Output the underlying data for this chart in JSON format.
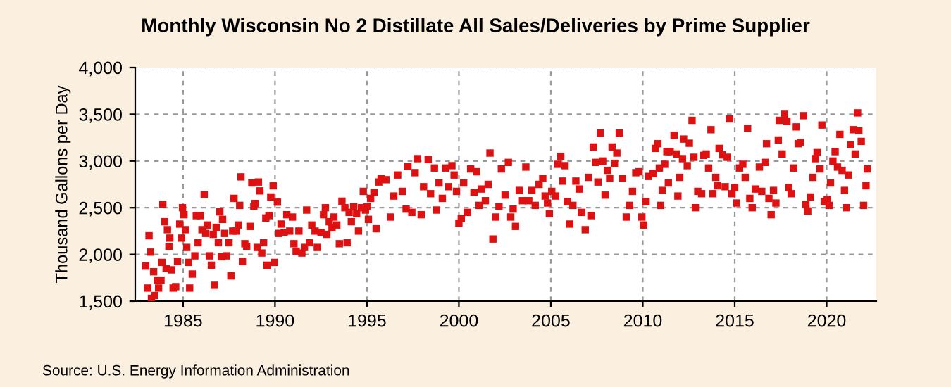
{
  "chart_data": {
    "type": "scatter",
    "title": "Monthly Wisconsin No 2 Distillate All Sales/Deliveries by Prime Supplier",
    "ylabel": "Thousand Gallons per Day",
    "annotations": [
      "Source: U.S. Energy Information Administration"
    ],
    "marker": "square",
    "grid": true,
    "xlim": [
      1982.4,
      2022.7
    ],
    "xticks": [
      1985,
      1990,
      1995,
      2000,
      2005,
      2010,
      2015,
      2020
    ],
    "ylim": [
      1500,
      4000
    ],
    "yticks": [
      {
        "value": 1500,
        "label": "1,500"
      },
      {
        "value": 2000,
        "label": "2,000"
      },
      {
        "value": 2500,
        "label": "2,500"
      },
      {
        "value": 3000,
        "label": "3,000"
      },
      {
        "value": 3500,
        "label": "3,500"
      },
      {
        "value": 4000,
        "label": "4,000"
      }
    ],
    "series": [
      {
        "color": "#dd1111",
        "x": [
          1982.97,
          1983.08,
          1983.15,
          1983.23,
          1983.28,
          1983.4,
          1983.46,
          1983.6,
          1983.67,
          1983.8,
          1983.85,
          1983.9,
          1984.0,
          1984.08,
          1984.15,
          1984.23,
          1984.28,
          1984.36,
          1984.46,
          1984.6,
          1984.7,
          1984.82,
          1984.92,
          1984.97,
          1985.05,
          1985.13,
          1985.2,
          1985.3,
          1985.36,
          1985.5,
          1985.64,
          1985.72,
          1985.82,
          1985.95,
          1986.03,
          1986.15,
          1986.23,
          1986.33,
          1986.44,
          1986.54,
          1986.64,
          1986.7,
          1986.8,
          1986.92,
          1987.0,
          1987.08,
          1987.15,
          1987.26,
          1987.36,
          1987.5,
          1987.6,
          1987.7,
          1987.77,
          1987.9,
          1988.0,
          1988.08,
          1988.15,
          1988.23,
          1988.36,
          1988.46,
          1988.64,
          1988.74,
          1988.85,
          1988.92,
          1989.03,
          1989.1,
          1989.18,
          1989.28,
          1989.38,
          1989.5,
          1989.56,
          1989.67,
          1989.77,
          1989.9,
          1989.97,
          1990.13,
          1990.2,
          1990.33,
          1990.5,
          1990.64,
          1990.8,
          1990.95,
          1991.03,
          1991.15,
          1991.3,
          1991.46,
          1991.6,
          1991.72,
          1991.87,
          1992.0,
          1992.18,
          1992.3,
          1992.5,
          1992.64,
          1992.74,
          1992.82,
          1992.95,
          1993.1,
          1993.2,
          1993.36,
          1993.5,
          1993.64,
          1993.8,
          1993.92,
          1994.03,
          1994.15,
          1994.28,
          1994.44,
          1994.54,
          1994.7,
          1994.8,
          1994.92,
          1995.0,
          1995.08,
          1995.2,
          1995.38,
          1995.5,
          1995.64,
          1995.77,
          1996.03,
          1996.28,
          1996.46,
          1996.67,
          1996.92,
          1997.13,
          1997.23,
          1997.44,
          1997.62,
          1997.74,
          1997.95,
          1998.08,
          1998.33,
          1998.46,
          1998.67,
          1998.77,
          1998.92,
          1999.1,
          1999.28,
          1999.44,
          1999.62,
          1999.74,
          1999.87,
          2000.0,
          2000.13,
          2000.26,
          2000.46,
          2000.64,
          2000.82,
          2000.97,
          2001.1,
          2001.23,
          2001.44,
          2001.59,
          2001.69,
          2001.85,
          2002.0,
          2002.18,
          2002.31,
          2002.51,
          2002.69,
          2002.82,
          2002.95,
          2003.08,
          2003.28,
          2003.46,
          2003.64,
          2003.8,
          2003.97,
          2004.15,
          2004.36,
          2004.56,
          2004.69,
          2004.82,
          2004.92,
          2005.05,
          2005.26,
          2005.38,
          2005.54,
          2005.64,
          2005.77,
          2005.9,
          2006.03,
          2006.2,
          2006.36,
          2006.54,
          2006.67,
          2006.87,
          2007.05,
          2007.18,
          2007.31,
          2007.44,
          2007.56,
          2007.69,
          2007.82,
          2007.95,
          2008.08,
          2008.2,
          2008.33,
          2008.46,
          2008.59,
          2008.72,
          2008.9,
          2009.1,
          2009.28,
          2009.44,
          2009.62,
          2009.8,
          2009.95,
          2010.05,
          2010.18,
          2010.31,
          2010.56,
          2010.69,
          2010.82,
          2010.9,
          2010.97,
          2011.06,
          2011.19,
          2011.31,
          2011.39,
          2011.49,
          2011.7,
          2011.83,
          2011.91,
          2012.01,
          2012.16,
          2012.22,
          2012.42,
          2012.53,
          2012.68,
          2012.78,
          2012.86,
          2012.99,
          2013.2,
          2013.3,
          2013.45,
          2013.58,
          2013.71,
          2013.81,
          2013.97,
          2014.07,
          2014.15,
          2014.33,
          2014.48,
          2014.59,
          2014.72,
          2014.85,
          2015.0,
          2015.1,
          2015.26,
          2015.44,
          2015.57,
          2015.7,
          2015.82,
          2015.95,
          2016.13,
          2016.34,
          2016.47,
          2016.65,
          2016.73,
          2016.86,
          2016.98,
          2017.11,
          2017.24,
          2017.37,
          2017.42,
          2017.58,
          2017.71,
          2017.84,
          2017.94,
          2018.07,
          2018.2,
          2018.35,
          2018.45,
          2018.58,
          2018.74,
          2018.87,
          2018.97,
          2019.12,
          2019.25,
          2019.38,
          2019.48,
          2019.64,
          2019.74,
          2019.87,
          2020.03,
          2020.13,
          2020.21,
          2020.34,
          2020.46,
          2020.59,
          2020.72,
          2020.84,
          2020.97,
          2021.06,
          2021.19,
          2021.29,
          2021.44,
          2021.55,
          2021.68,
          2021.75,
          2021.88,
          2022.01,
          2022.14,
          2022.21
        ],
        "values": [
          1875,
          1640,
          2200,
          2025,
          1530,
          1815,
          1560,
          1725,
          1640,
          1725,
          1915,
          2535,
          2350,
          1850,
          2265,
          2085,
          2175,
          1835,
          1640,
          1655,
          1925,
          2325,
          2175,
          2500,
          2425,
          2265,
          2075,
          1915,
          1640,
          1790,
          1985,
          2415,
          2125,
          2415,
          2265,
          2640,
          2225,
          2315,
          1985,
          1885,
          2215,
          1670,
          2290,
          2125,
          2455,
          1975,
          2375,
          2225,
          1985,
          2125,
          1770,
          2250,
          2600,
          2250,
          2315,
          2525,
          2830,
          1925,
          2115,
          2085,
          2300,
          2765,
          2515,
          2545,
          2075,
          2775,
          2680,
          2015,
          2125,
          2390,
          1885,
          2415,
          2615,
          2735,
          1915,
          2560,
          2225,
          2325,
          2235,
          2425,
          2250,
          2400,
          2115,
          2035,
          2250,
          2015,
          2075,
          2475,
          2125,
          2315,
          2250,
          2075,
          2235,
          2425,
          2500,
          2215,
          2350,
          2285,
          2400,
          2315,
          2115,
          2570,
          2500,
          2125,
          2450,
          2350,
          2515,
          2435,
          2250,
          2500,
          2675,
          2475,
          2515,
          2375,
          2600,
          2665,
          2275,
          2775,
          2815,
          2800,
          2400,
          2625,
          2850,
          2675,
          2485,
          2940,
          2450,
          2875,
          3025,
          2425,
          2725,
          3015,
          2650,
          2925,
          2475,
          2765,
          2600,
          2925,
          2725,
          2950,
          2850,
          2675,
          2335,
          2385,
          2765,
          2450,
          2915,
          2665,
          2885,
          2525,
          2700,
          2575,
          2750,
          3085,
          2165,
          2400,
          2515,
          2915,
          2635,
          2985,
          2400,
          2485,
          2300,
          2685,
          2575,
          2935,
          2575,
          2685,
          2525,
          2750,
          2815,
          2625,
          2550,
          2435,
          2675,
          2625,
          2965,
          3050,
          2785,
          2950,
          2565,
          2325,
          2525,
          2785,
          2700,
          2450,
          2265,
          2825,
          2415,
          3150,
          2985,
          2775,
          3300,
          3000,
          2635,
          2900,
          2815,
          3150,
          2975,
          3085,
          3300,
          2815,
          2400,
          2525,
          2675,
          2875,
          2885,
          2400,
          2315,
          2565,
          2835,
          2865,
          3135,
          3185,
          2925,
          2525,
          2685,
          2965,
          3100,
          2765,
          3100,
          3275,
          3075,
          2625,
          2825,
          3025,
          3235,
          2950,
          3190,
          3435,
          3040,
          2500,
          2675,
          2650,
          3060,
          3075,
          2925,
          3335,
          2650,
          2825,
          2735,
          3135,
          3065,
          2725,
          3040,
          3450,
          2650,
          2715,
          2550,
          2925,
          2965,
          2825,
          3350,
          2600,
          2500,
          2700,
          2935,
          2675,
          2985,
          3185,
          2600,
          2425,
          2685,
          2550,
          3225,
          3435,
          3075,
          3500,
          3425,
          2715,
          2650,
          2925,
          3365,
          3185,
          3200,
          3485,
          2535,
          2465,
          2615,
          2825,
          3025,
          3090,
          2915,
          3385,
          2565,
          2585,
          2525,
          2765,
          3000,
          3100,
          2935,
          3285,
          2900,
          2685,
          2500,
          2850,
          3175,
          3335,
          3075,
          3515,
          3325,
          3210,
          2525,
          2735,
          2915
        ]
      }
    ]
  }
}
